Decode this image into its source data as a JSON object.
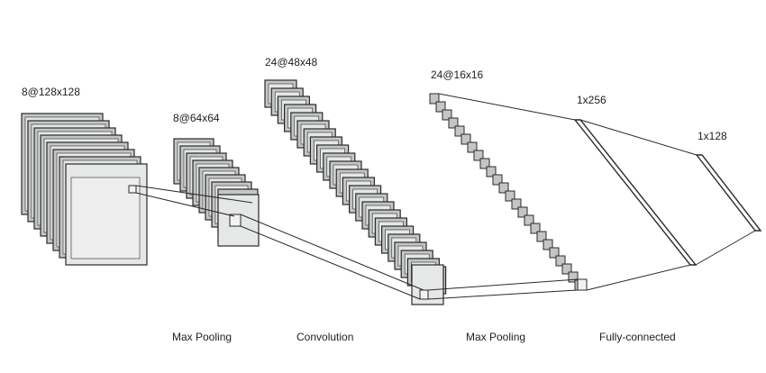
{
  "layers": [
    {
      "id": "input",
      "label": "8@128x128"
    },
    {
      "id": "pool1",
      "label": "8@64x64"
    },
    {
      "id": "conv",
      "label": "24@48x48"
    },
    {
      "id": "pool2",
      "label": "24@16x16"
    },
    {
      "id": "fc1",
      "label": "1x256"
    },
    {
      "id": "fc2",
      "label": "1x128"
    }
  ],
  "operations": [
    {
      "id": "op-max-pooling-1",
      "label": "Max Pooling"
    },
    {
      "id": "op-convolution",
      "label": "Convolution"
    },
    {
      "id": "op-max-pooling-2",
      "label": "Max Pooling"
    },
    {
      "id": "op-fully-connected",
      "label": "Fully-connected"
    }
  ],
  "colors": {
    "map_fill": "#c4c6c6",
    "map_fill_light": "#e6e7e7",
    "stroke": "#2a2a2a",
    "text": "#222222"
  }
}
